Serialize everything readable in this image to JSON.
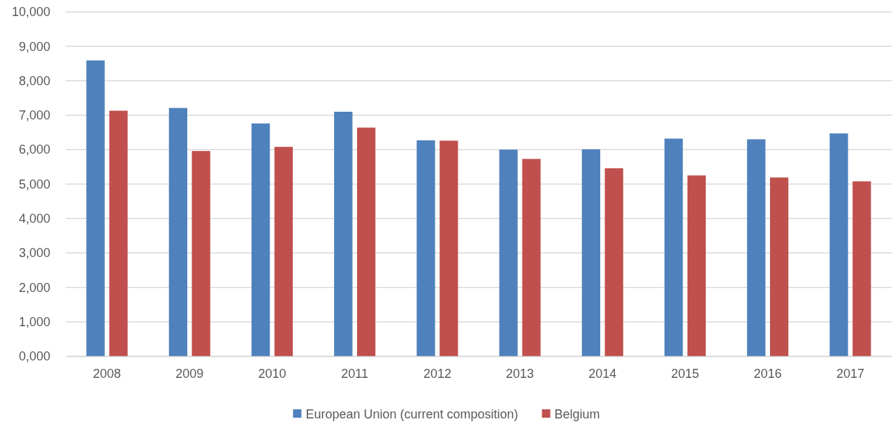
{
  "chart_data": {
    "type": "bar",
    "categories": [
      "2008",
      "2009",
      "2010",
      "2011",
      "2012",
      "2013",
      "2014",
      "2015",
      "2016",
      "2017"
    ],
    "series": [
      {
        "name": "European Union (current composition)",
        "color": "#4f81bd",
        "values": [
          8590,
          7210,
          6760,
          7100,
          6270,
          6000,
          6010,
          6320,
          6300,
          6470
        ]
      },
      {
        "name": "Belgium",
        "color": "#c0504d",
        "values": [
          7130,
          5960,
          6080,
          6640,
          6260,
          5730,
          5460,
          5250,
          5190,
          5080
        ]
      }
    ],
    "ylim": [
      0,
      10000
    ],
    "yticks": [
      {
        "value": 0,
        "label": "0,000"
      },
      {
        "value": 1000,
        "label": "1,000"
      },
      {
        "value": 2000,
        "label": "2,000"
      },
      {
        "value": 3000,
        "label": "3,000"
      },
      {
        "value": 4000,
        "label": "4,000"
      },
      {
        "value": 5000,
        "label": "5,000"
      },
      {
        "value": 6000,
        "label": "6,000"
      },
      {
        "value": 7000,
        "label": "7,000"
      },
      {
        "value": 8000,
        "label": "8,000"
      },
      {
        "value": 9000,
        "label": "9,000"
      },
      {
        "value": 10000,
        "label": "10,000"
      }
    ],
    "grid": "y",
    "legend": "bottom"
  }
}
